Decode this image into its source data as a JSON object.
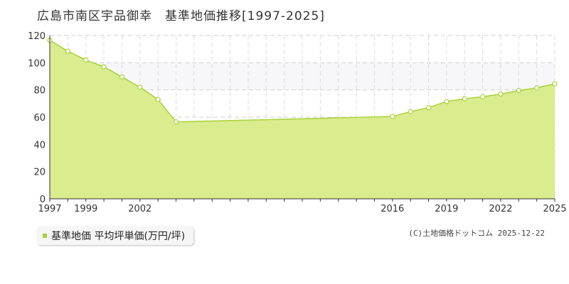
{
  "chart_data": {
    "type": "area",
    "title": "広島市南区宇品御幸　基準地価推移[1997-2025]",
    "ylim": [
      0,
      120
    ],
    "yticks": [
      0,
      20,
      40,
      60,
      80,
      100,
      120
    ],
    "xlim": [
      1997,
      2025
    ],
    "xtick_labels": [
      "1997",
      "1999",
      "2002",
      "2016",
      "2019",
      "2022",
      "2025"
    ],
    "grid": true,
    "legend_position": "bottom-left",
    "series": [
      {
        "name": "基準地価 平均坪単価(万円/坪)",
        "color": "#a8d23a",
        "fill": "#d9ec8e",
        "x": [
          1997,
          1998,
          1999,
          2000,
          2001,
          2002,
          2003,
          2004,
          2016,
          2017,
          2018,
          2019,
          2020,
          2021,
          2022,
          2023,
          2024,
          2025
        ],
        "values": [
          116.5,
          108.5,
          102,
          97,
          89.5,
          82,
          73,
          56.5,
          60.5,
          64,
          67,
          71.5,
          73.5,
          75,
          77,
          79.5,
          81.5,
          84.5
        ]
      }
    ]
  },
  "legend": {
    "label": "基準地価 平均坪単価(万円/坪)"
  },
  "credit": "(C)土地価格ドットコム 2025-12-22"
}
